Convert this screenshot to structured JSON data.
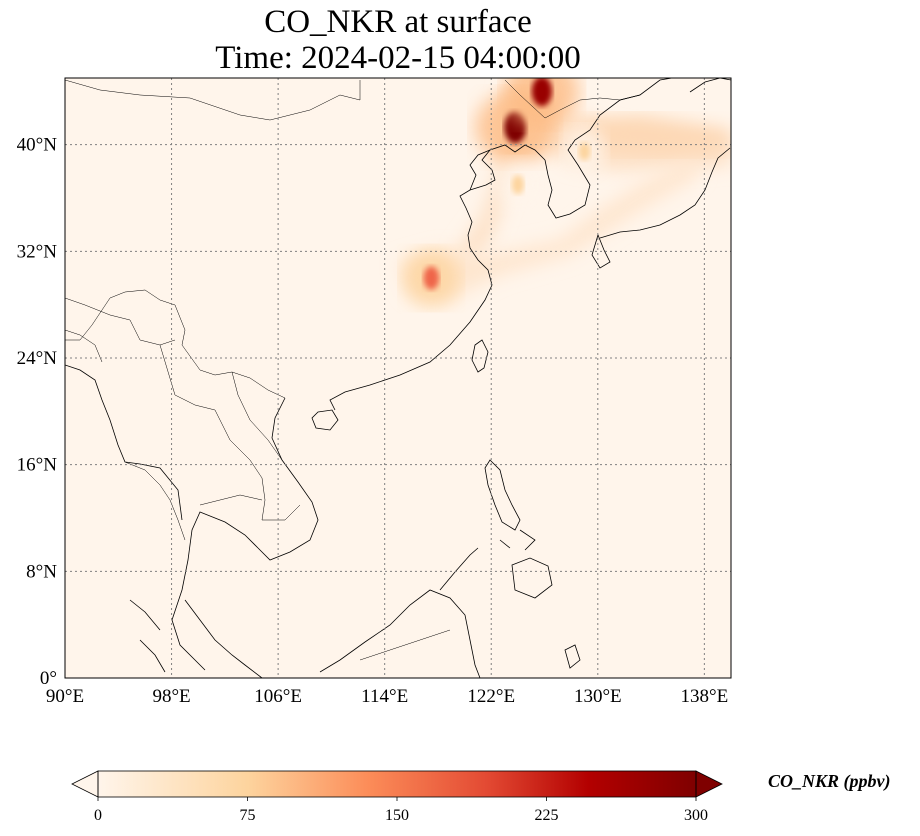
{
  "title": {
    "line1": "CO_NKR at surface",
    "line2": "Time: 2024-02-15 04:00:00"
  },
  "map": {
    "projection": "PlateCarree",
    "lon_range": [
      90,
      140
    ],
    "lat_range": [
      0,
      45
    ],
    "x_ticks": [
      {
        "lon": 90,
        "label": "90°E"
      },
      {
        "lon": 98,
        "label": "98°E"
      },
      {
        "lon": 106,
        "label": "106°E"
      },
      {
        "lon": 114,
        "label": "114°E"
      },
      {
        "lon": 122,
        "label": "122°E"
      },
      {
        "lon": 130,
        "label": "130°E"
      },
      {
        "lon": 138,
        "label": "138°E"
      }
    ],
    "y_ticks": [
      {
        "lat": 0,
        "label": "0°"
      },
      {
        "lat": 8,
        "label": "8°N"
      },
      {
        "lat": 16,
        "label": "16°N"
      },
      {
        "lat": 24,
        "label": "24°N"
      },
      {
        "lat": 32,
        "label": "32°N"
      },
      {
        "lat": 40,
        "label": "40°N"
      }
    ],
    "gridlines": true,
    "background_color": "#fff5eb",
    "hotspots": [
      {
        "lon": 123.8,
        "lat": 41.3,
        "value": 300
      },
      {
        "lon": 125.8,
        "lat": 44.0,
        "value": 260
      },
      {
        "lon": 117.5,
        "lat": 30.0,
        "value": 140
      },
      {
        "lon": 124.0,
        "lat": 37.0,
        "value": 60
      },
      {
        "lon": 129.0,
        "lat": 39.5,
        "value": 45
      }
    ]
  },
  "colorbar": {
    "label": "CO_NKR (ppbv)",
    "colormap": "OrRd",
    "min": 0,
    "max": 300,
    "extend": "both",
    "ticks": [
      {
        "value": 0,
        "label": "0"
      },
      {
        "value": 75,
        "label": "75"
      },
      {
        "value": 150,
        "label": "150"
      },
      {
        "value": 225,
        "label": "225"
      },
      {
        "value": 300,
        "label": "300"
      }
    ],
    "colors": [
      "#fff5eb",
      "#fdd49e",
      "#fdbb84",
      "#ef6548",
      "#d7301f",
      "#990000",
      "#7f0000"
    ]
  }
}
